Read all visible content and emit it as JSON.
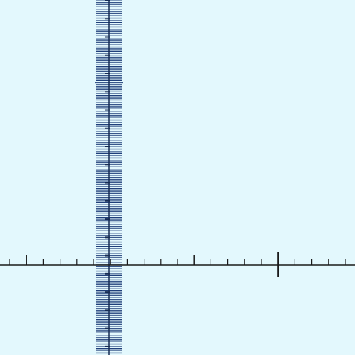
{
  "chart_data": {
    "type": "diagram",
    "title": "",
    "xlabel": "",
    "ylabel": "",
    "x_axis": {
      "minor_tick_count": 20,
      "medium_tick_indices": [
        1,
        11
      ],
      "major_tick_indices": [
        16
      ]
    },
    "y_axis": {
      "minor_tick_count": 195,
      "major_tick_indices": [
        45
      ]
    },
    "colors": {
      "background": "#e3f8fd",
      "x_axis": "#1a1a1a",
      "y_axis_ticks": "#1f3f7a",
      "y_axis_line": "#162c55"
    }
  }
}
